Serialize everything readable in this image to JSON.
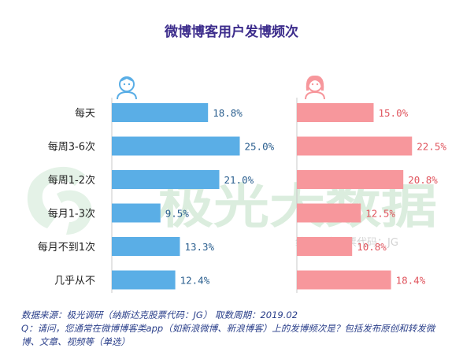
{
  "chart_data": {
    "type": "bar",
    "title": "微博博客用户发博频次",
    "categories": [
      "每天",
      "每周3-6次",
      "每周1-2次",
      "每月1-3次",
      "每月不到1次",
      "几乎从不"
    ],
    "series": [
      {
        "name": "男",
        "values": [
          18.8,
          25.0,
          21.0,
          9.5,
          13.3,
          12.4
        ],
        "labels": [
          "18.8%",
          "25.0%",
          "21.0%",
          "9.5%",
          "13.3%",
          "12.4%"
        ],
        "color": "#5aaee6",
        "label_color": "#2b5f8f",
        "icon": "male-avatar-icon"
      },
      {
        "name": "女",
        "values": [
          15.0,
          22.5,
          20.8,
          12.5,
          10.8,
          18.4
        ],
        "labels": [
          "15.0%",
          "22.5%",
          "20.8%",
          "12.5%",
          "10.8%",
          "18.4%"
        ],
        "color": "#f7979c",
        "label_color": "#e0555e",
        "icon": "female-avatar-icon"
      }
    ],
    "xlim": [
      0,
      30
    ],
    "grid": false,
    "legend": "none"
  },
  "watermark": {
    "brand": "极光大数据",
    "sub": "纳斯达克股票代码：JG",
    "color": "#cfe8d4"
  },
  "footer": {
    "source": "数据来源：极光调研（纳斯达克股票代码：JG）  取数周期：2019.02",
    "question": "Q：请问，您通常在微博博客类app（如新浪微博、新浪博客）上的发博频次是？包括发布原创和转发微博、文章、视频等（单选）"
  }
}
